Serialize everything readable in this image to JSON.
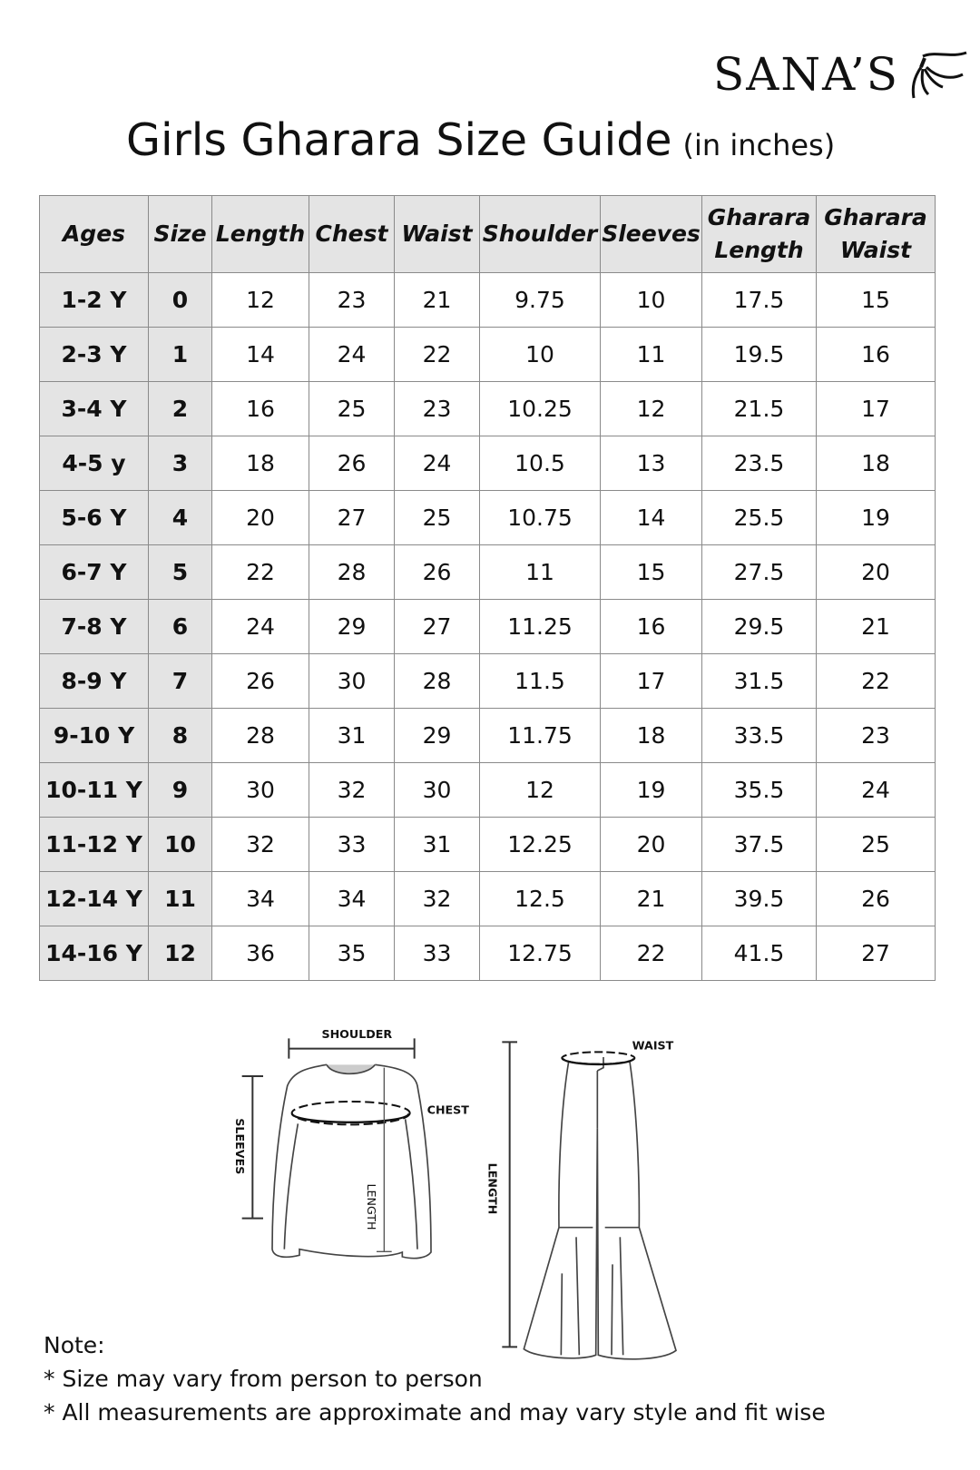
{
  "brand": {
    "name": "SANA'S",
    "display": "SANA’S"
  },
  "title": {
    "main": "Girls Gharara Size Guide",
    "unit": "(in inches)"
  },
  "table": {
    "headers": [
      "Ages",
      "Size",
      "Length",
      "Chest",
      "Waist",
      "Shoulder",
      "Sleeves",
      "Gharara Length",
      "Gharara Waist"
    ],
    "rows": [
      [
        "1-2 Y",
        "0",
        "12",
        "23",
        "21",
        "9.75",
        "10",
        "17.5",
        "15"
      ],
      [
        "2-3 Y",
        "1",
        "14",
        "24",
        "22",
        "10",
        "11",
        "19.5",
        "16"
      ],
      [
        "3-4 Y",
        "2",
        "16",
        "25",
        "23",
        "10.25",
        "12",
        "21.5",
        "17"
      ],
      [
        "4-5 y",
        "3",
        "18",
        "26",
        "24",
        "10.5",
        "13",
        "23.5",
        "18"
      ],
      [
        "5-6 Y",
        "4",
        "20",
        "27",
        "25",
        "10.75",
        "14",
        "25.5",
        "19"
      ],
      [
        "6-7 Y",
        "5",
        "22",
        "28",
        "26",
        "11",
        "15",
        "27.5",
        "20"
      ],
      [
        "7-8 Y",
        "6",
        "24",
        "29",
        "27",
        "11.25",
        "16",
        "29.5",
        "21"
      ],
      [
        "8-9 Y",
        "7",
        "26",
        "30",
        "28",
        "11.5",
        "17",
        "31.5",
        "22"
      ],
      [
        "9-10 Y",
        "8",
        "28",
        "31",
        "29",
        "11.75",
        "18",
        "33.5",
        "23"
      ],
      [
        "10-11 Y",
        "9",
        "30",
        "32",
        "30",
        "12",
        "19",
        "35.5",
        "24"
      ],
      [
        "11-12 Y",
        "10",
        "32",
        "33",
        "31",
        "12.25",
        "20",
        "37.5",
        "25"
      ],
      [
        "12-14 Y",
        "11",
        "34",
        "34",
        "32",
        "12.5",
        "21",
        "39.5",
        "26"
      ],
      [
        "14-16 Y",
        "12",
        "36",
        "35",
        "33",
        "12.75",
        "22",
        "41.5",
        "27"
      ]
    ]
  },
  "diagram": {
    "shoulder": "SHOULDER",
    "chest": "CHEST",
    "sleeves": "SLEEVES",
    "top_length": "LENGTH",
    "waist": "WAIST",
    "bottom_length": "LENGTH"
  },
  "notes": {
    "heading": "Note:",
    "items": [
      "* Size may vary from person to person",
      "* All measurements are approximate and may vary style and fit wise"
    ]
  }
}
